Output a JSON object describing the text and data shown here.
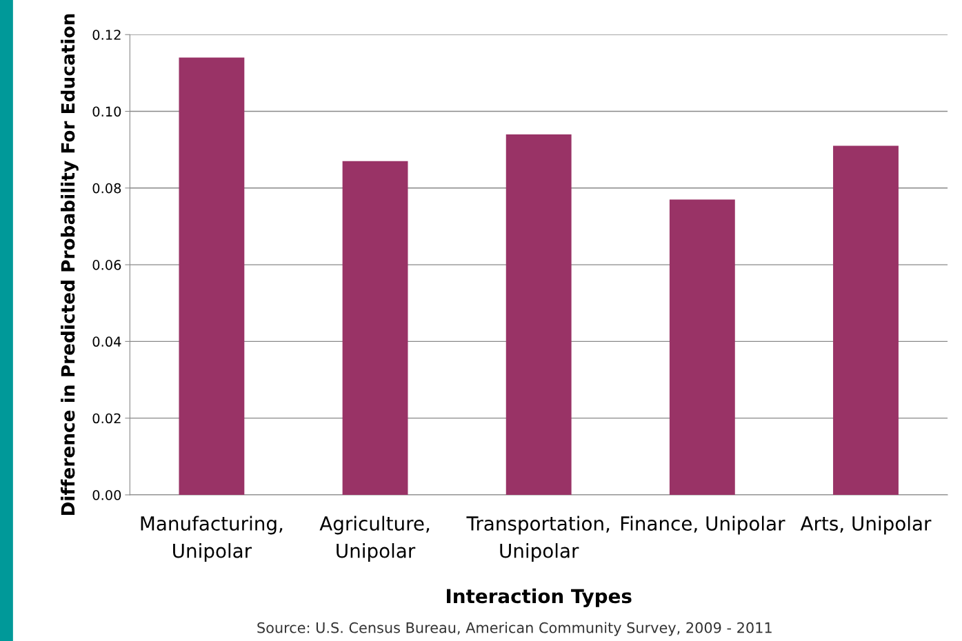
{
  "chart_data": {
    "type": "bar",
    "xlabel": "Interaction Types",
    "ylabel": "Difference in Predicted Probability For Education",
    "categories": [
      "Manufacturing,\nUnipolar",
      "Agriculture,\nUnipolar",
      "Transportation,\nUnipolar",
      "Finance, Unipolar",
      "Arts, Unipolar"
    ],
    "values": [
      0.114,
      0.087,
      0.094,
      0.077,
      0.091
    ],
    "color": "#993366",
    "ylim": [
      0,
      0.12
    ],
    "yticks": [
      {
        "value": 0,
        "label": "0.00"
      },
      {
        "value": 0.02,
        "label": "0.02"
      },
      {
        "value": 0.04,
        "label": "0.04"
      },
      {
        "value": 0.06,
        "label": "0.06"
      },
      {
        "value": 0.08,
        "label": "0.08"
      },
      {
        "value": 0.1,
        "label": "0.10"
      },
      {
        "value": 0.12,
        "label": "0.12"
      }
    ],
    "grid": "y",
    "annotations": [
      "Source: U.S. Census Bureau, American Community Survey, 2009 - 2011"
    ]
  }
}
